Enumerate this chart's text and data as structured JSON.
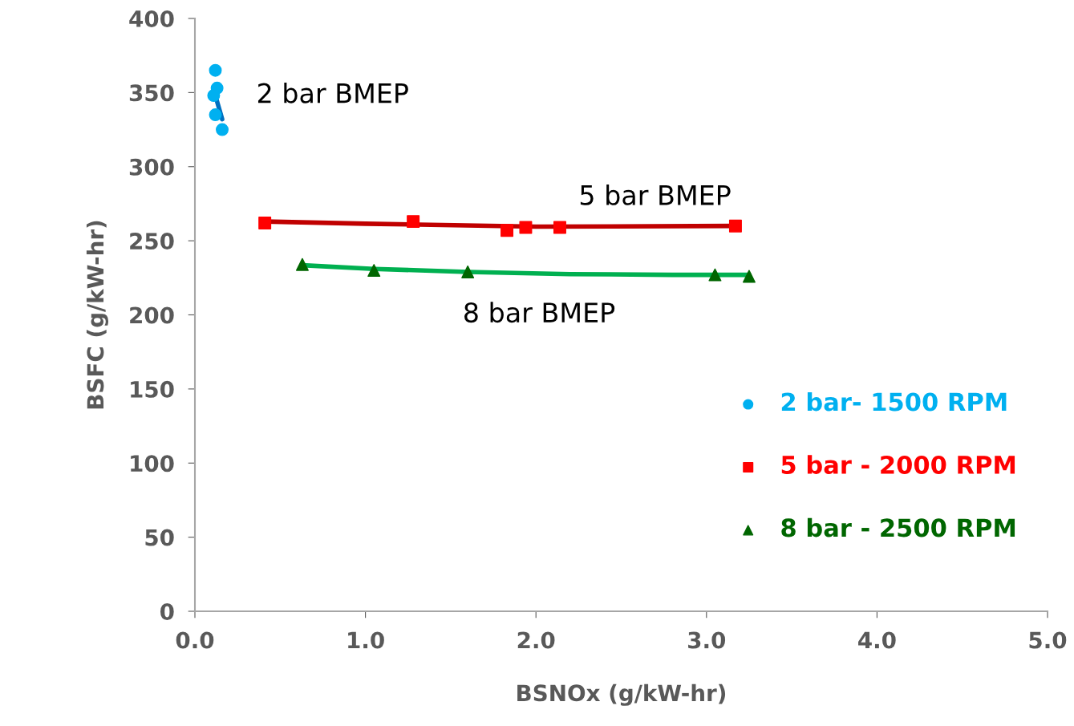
{
  "chart_data": {
    "type": "scatter",
    "xlabel": "BSNOx (g/kW-hr)",
    "ylabel": "BSFC (g/kW-hr)",
    "xlim": [
      0,
      5
    ],
    "ylim": [
      0,
      400
    ],
    "xticks": [
      {
        "value": 0,
        "label": "0.0"
      },
      {
        "value": 1,
        "label": "1.0"
      },
      {
        "value": 2,
        "label": "2.0"
      },
      {
        "value": 3,
        "label": "3.0"
      },
      {
        "value": 4,
        "label": "4.0"
      },
      {
        "value": 5,
        "label": "5.0"
      }
    ],
    "yticks": [
      0,
      50,
      100,
      150,
      200,
      250,
      300,
      350,
      400
    ],
    "grid": false,
    "legend": "bottom right",
    "series": [
      {
        "name": "2 bar- 1500 RPM",
        "marker": "circle",
        "color": "#00b0f0",
        "x": [
          0.12,
          0.13,
          0.11,
          0.12,
          0.16
        ],
        "values": [
          365,
          353,
          348,
          335,
          325
        ]
      },
      {
        "name": "5 bar - 2000 RPM",
        "marker": "square",
        "color": "#ff0000",
        "x": [
          0.41,
          1.28,
          1.83,
          1.94,
          2.14,
          3.17
        ],
        "values": [
          262,
          263,
          257,
          259,
          259,
          260
        ]
      },
      {
        "name": "8 bar - 2500 RPM",
        "marker": "triangle",
        "color": "#006600",
        "x": [
          0.63,
          1.05,
          1.6,
          3.05,
          3.25
        ],
        "values": [
          234,
          230,
          229,
          227,
          226
        ]
      },
      {
        "type": "line",
        "marker": "none",
        "color": "#0070c0",
        "x": [
          0.11,
          0.16
        ],
        "values": [
          352,
          332
        ]
      },
      {
        "type": "line",
        "marker": "none",
        "color": "#c00000",
        "x": [
          0.41,
          1.0,
          2.0,
          3.17
        ],
        "values": [
          263,
          261.5,
          259.5,
          260
        ]
      },
      {
        "type": "line",
        "marker": "none",
        "color": "#00b050",
        "x": [
          0.63,
          1.05,
          1.6,
          2.2,
          2.8,
          3.25
        ],
        "values": [
          233.5,
          231,
          229,
          227.5,
          227,
          227
        ]
      }
    ],
    "annotations": [
      "2 bar BMEP",
      "5 bar BMEP",
      "8 bar BMEP"
    ]
  }
}
